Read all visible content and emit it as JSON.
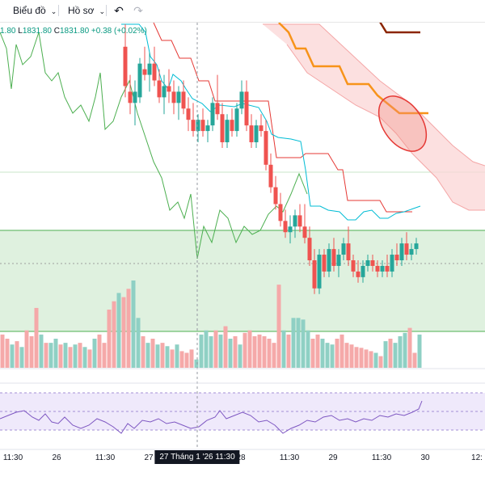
{
  "toolbar": {
    "chart_menu": "Biểu đồ",
    "profile_menu": "Hồ sơ",
    "undo_icon": "undo-icon",
    "redo_icon": "redo-icon"
  },
  "legend": {
    "open_value": "1.80",
    "low_label": "L",
    "low_value": "1831.80",
    "close_label": "C",
    "close_value": "1831.80",
    "change": "+0.38 (+0.02%)"
  },
  "colors": {
    "up": "#26a69a",
    "down": "#ef5350",
    "tenkan": "#00bcd4",
    "kijun": "#e53935",
    "lagging": "#4caf50",
    "cloud": "#f8c7c7",
    "zone": "#dff1df",
    "rsi_band": "#efe9fb",
    "rsi_line": "#7e57c2",
    "orange": "#f7931a",
    "brown": "#8b2500"
  },
  "chart_data": {
    "type": "candlestick",
    "xaxis_labels": [
      "11:30",
      "26",
      "11:30",
      "27",
      "28",
      "11:30",
      "29",
      "11:30",
      "30",
      "12:"
    ],
    "crosshair_label": "27 Tháng 1 '26   11:30",
    "price_scale": {
      "top": 1862,
      "bottom": 1820
    },
    "candles": [
      [
        155,
        1858,
        1862,
        1849,
        1851
      ],
      [
        161,
        1850,
        1853,
        1846,
        1848
      ],
      [
        167,
        1848,
        1852,
        1844,
        1850
      ],
      [
        173,
        1849,
        1856,
        1848,
        1855
      ],
      [
        179,
        1854,
        1858,
        1852,
        1853
      ],
      [
        185,
        1853,
        1857,
        1850,
        1855
      ],
      [
        191,
        1855,
        1858,
        1851,
        1852
      ],
      [
        197,
        1852,
        1854,
        1848,
        1849
      ],
      [
        203,
        1849,
        1853,
        1846,
        1851
      ],
      [
        209,
        1851,
        1854,
        1848,
        1850
      ],
      [
        215,
        1850,
        1852,
        1846,
        1848
      ],
      [
        221,
        1848,
        1851,
        1845,
        1850
      ],
      [
        227,
        1850,
        1852,
        1846,
        1847
      ],
      [
        233,
        1847,
        1849,
        1843,
        1845
      ],
      [
        239,
        1845,
        1848,
        1842,
        1843
      ],
      [
        245,
        1843,
        1846,
        1841,
        1845
      ],
      [
        251,
        1845,
        1847,
        1842,
        1843
      ],
      [
        257,
        1843,
        1845,
        1841,
        1844
      ],
      [
        263,
        1844,
        1849,
        1843,
        1848
      ],
      [
        269,
        1848,
        1853,
        1845,
        1846
      ],
      [
        275,
        1846,
        1848,
        1840,
        1841
      ],
      [
        281,
        1841,
        1846,
        1840,
        1845
      ],
      [
        287,
        1845,
        1847,
        1842,
        1843
      ],
      [
        293,
        1843,
        1848,
        1842,
        1847
      ],
      [
        299,
        1847,
        1852,
        1846,
        1850
      ],
      [
        305,
        1850,
        1852,
        1843,
        1844
      ],
      [
        311,
        1844,
        1846,
        1840,
        1841
      ],
      [
        317,
        1841,
        1845,
        1840,
        1844
      ],
      [
        323,
        1844,
        1846,
        1842,
        1843
      ],
      [
        329,
        1843,
        1845,
        1836,
        1837
      ],
      [
        335,
        1837,
        1839,
        1832,
        1833
      ],
      [
        341,
        1833,
        1835,
        1829,
        1830
      ],
      [
        347,
        1830,
        1832,
        1826,
        1827
      ],
      [
        353,
        1827,
        1829,
        1824,
        1825
      ],
      [
        359,
        1825,
        1828,
        1823,
        1826
      ],
      [
        365,
        1826,
        1829,
        1824,
        1828
      ],
      [
        371,
        1828,
        1830,
        1825,
        1826
      ],
      [
        377,
        1826,
        1830,
        1823,
        1824
      ],
      [
        383,
        1824,
        1826,
        1819,
        1820
      ],
      [
        389,
        1820,
        1822,
        1814,
        1815
      ],
      [
        395,
        1815,
        1822,
        1814,
        1821
      ],
      [
        401,
        1821,
        1822,
        1817,
        1818
      ],
      [
        407,
        1818,
        1823,
        1817,
        1822
      ],
      [
        413,
        1822,
        1824,
        1818,
        1819
      ],
      [
        419,
        1819,
        1822,
        1817,
        1821
      ],
      [
        425,
        1821,
        1824,
        1820,
        1823
      ],
      [
        431,
        1823,
        1826,
        1819,
        1820
      ],
      [
        437,
        1820,
        1821,
        1817,
        1818
      ],
      [
        443,
        1818,
        1820,
        1816,
        1817
      ],
      [
        449,
        1817,
        1820,
        1816,
        1819
      ],
      [
        455,
        1819,
        1821,
        1818,
        1820
      ],
      [
        461,
        1820,
        1821,
        1818,
        1819
      ],
      [
        467,
        1819,
        1820,
        1817,
        1818
      ],
      [
        473,
        1818,
        1820,
        1817,
        1819
      ],
      [
        479,
        1819,
        1821,
        1817,
        1818
      ],
      [
        485,
        1818,
        1822,
        1817,
        1821
      ],
      [
        491,
        1821,
        1823,
        1819,
        1820
      ],
      [
        497,
        1820,
        1824,
        1819,
        1823
      ],
      [
        503,
        1823,
        1825,
        1820,
        1821
      ],
      [
        509,
        1821,
        1823,
        1820,
        1822
      ],
      [
        515,
        1822,
        1824,
        1821,
        1823
      ]
    ],
    "volume": [
      [
        3,
        40,
        0
      ],
      [
        9,
        35,
        0
      ],
      [
        15,
        28,
        1
      ],
      [
        21,
        32,
        0
      ],
      [
        27,
        25,
        1
      ],
      [
        33,
        45,
        0
      ],
      [
        39,
        38,
        0
      ],
      [
        45,
        72,
        0
      ],
      [
        51,
        40,
        1
      ],
      [
        57,
        30,
        0
      ],
      [
        63,
        30,
        1
      ],
      [
        69,
        35,
        1
      ],
      [
        75,
        28,
        0
      ],
      [
        81,
        30,
        1
      ],
      [
        87,
        25,
        0
      ],
      [
        93,
        28,
        1
      ],
      [
        99,
        30,
        0
      ],
      [
        105,
        25,
        1
      ],
      [
        111,
        22,
        0
      ],
      [
        117,
        35,
        1
      ],
      [
        123,
        40,
        0
      ],
      [
        129,
        30,
        0
      ],
      [
        135,
        70,
        0
      ],
      [
        141,
        80,
        0
      ],
      [
        147,
        90,
        1
      ],
      [
        153,
        85,
        0
      ],
      [
        159,
        95,
        0
      ],
      [
        165,
        105,
        1
      ],
      [
        171,
        60,
        1
      ],
      [
        177,
        38,
        0
      ],
      [
        183,
        30,
        1
      ],
      [
        189,
        35,
        0
      ],
      [
        195,
        28,
        1
      ],
      [
        201,
        30,
        0
      ],
      [
        207,
        26,
        1
      ],
      [
        213,
        22,
        0
      ],
      [
        219,
        28,
        1
      ],
      [
        225,
        20,
        0
      ],
      [
        231,
        18,
        0
      ],
      [
        237,
        22,
        0
      ],
      [
        243,
        10,
        1
      ],
      [
        249,
        40,
        1
      ],
      [
        255,
        45,
        1
      ],
      [
        261,
        38,
        1
      ],
      [
        267,
        45,
        0
      ],
      [
        273,
        40,
        1
      ],
      [
        279,
        50,
        0
      ],
      [
        285,
        35,
        1
      ],
      [
        291,
        38,
        0
      ],
      [
        297,
        28,
        1
      ],
      [
        303,
        42,
        0
      ],
      [
        309,
        45,
        0
      ],
      [
        315,
        38,
        0
      ],
      [
        321,
        40,
        0
      ],
      [
        327,
        38,
        0
      ],
      [
        333,
        35,
        0
      ],
      [
        339,
        30,
        0
      ],
      [
        345,
        100,
        0
      ],
      [
        351,
        45,
        1
      ],
      [
        357,
        40,
        0
      ],
      [
        363,
        60,
        1
      ],
      [
        369,
        60,
        1
      ],
      [
        375,
        58,
        1
      ],
      [
        381,
        45,
        1
      ],
      [
        387,
        35,
        0
      ],
      [
        393,
        40,
        0
      ],
      [
        399,
        35,
        1
      ],
      [
        405,
        30,
        1
      ],
      [
        411,
        28,
        1
      ],
      [
        417,
        35,
        0
      ],
      [
        423,
        40,
        0
      ],
      [
        429,
        30,
        0
      ],
      [
        435,
        28,
        0
      ],
      [
        441,
        25,
        0
      ],
      [
        447,
        24,
        0
      ],
      [
        453,
        22,
        0
      ],
      [
        459,
        20,
        0
      ],
      [
        465,
        18,
        1
      ],
      [
        471,
        14,
        0
      ],
      [
        477,
        32,
        1
      ],
      [
        483,
        35,
        0
      ],
      [
        489,
        30,
        1
      ],
      [
        495,
        38,
        1
      ],
      [
        501,
        42,
        1
      ],
      [
        507,
        48,
        0
      ],
      [
        513,
        18,
        0
      ],
      [
        519,
        40,
        1
      ]
    ]
  }
}
